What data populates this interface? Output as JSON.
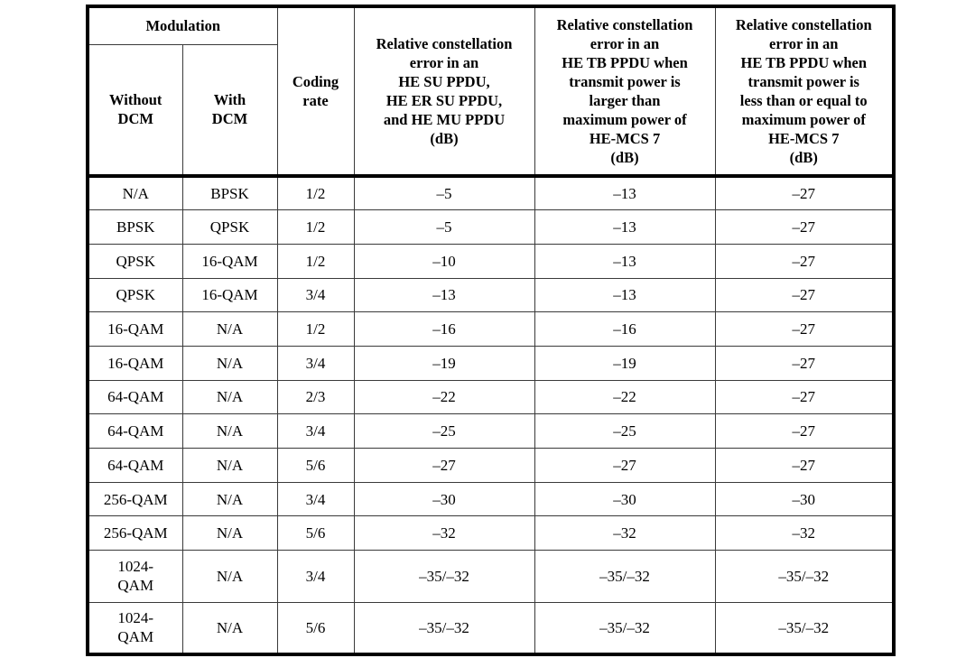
{
  "page": {
    "background": "#ffffff",
    "border_color": "#000000",
    "grid_color": "#3a3a3a",
    "text_color": "#000000"
  },
  "table": {
    "name": "he-transmit-constellation-error-table",
    "header": {
      "modulation_group": "Modulation",
      "without_dcm": "Without\nDCM",
      "with_dcm": "With\nDCM",
      "coding_rate": "Coding\nrate",
      "rce_su": "Relative constellation\nerror in an\nHE SU PPDU,\nHE ER SU PPDU,\nand HE MU PPDU\n(dB)",
      "rce_tb_larger": "Relative constellation\nerror in an\nHE TB PPDU when\ntransmit power is\nlarger than\nmaximum power of\nHE-MCS 7\n(dB)",
      "rce_tb_less_equal": "Relative constellation\nerror in an\nHE TB PPDU when\ntransmit power is\nless than or equal to\nmaximum power of\nHE-MCS 7\n(dB)"
    },
    "rows": [
      [
        "N/A",
        "BPSK",
        "1/2",
        "–5",
        "–13",
        "–27"
      ],
      [
        "BPSK",
        "QPSK",
        "1/2",
        "–5",
        "–13",
        "–27"
      ],
      [
        "QPSK",
        "16-QAM",
        "1/2",
        "–10",
        "–13",
        "–27"
      ],
      [
        "QPSK",
        "16-QAM",
        "3/4",
        "–13",
        "–13",
        "–27"
      ],
      [
        "16-QAM",
        "N/A",
        "1/2",
        "–16",
        "–16",
        "–27"
      ],
      [
        "16-QAM",
        "N/A",
        "3/4",
        "–19",
        "–19",
        "–27"
      ],
      [
        "64-QAM",
        "N/A",
        "2/3",
        "–22",
        "–22",
        "–27"
      ],
      [
        "64-QAM",
        "N/A",
        "3/4",
        "–25",
        "–25",
        "–27"
      ],
      [
        "64-QAM",
        "N/A",
        "5/6",
        "–27",
        "–27",
        "–27"
      ],
      [
        "256-QAM",
        "N/A",
        "3/4",
        "–30",
        "–30",
        "–30"
      ],
      [
        "256-QAM",
        "N/A",
        "5/6",
        "–32",
        "–32",
        "–32"
      ],
      [
        "1024-\nQAM",
        "N/A",
        "3/4",
        "–35/–32",
        "–35/–32",
        "–35/–32"
      ],
      [
        "1024-\nQAM",
        "N/A",
        "5/6",
        "–35/–32",
        "–35/–32",
        "–35/–32"
      ]
    ],
    "tall_row_indices": [
      11,
      12
    ]
  }
}
